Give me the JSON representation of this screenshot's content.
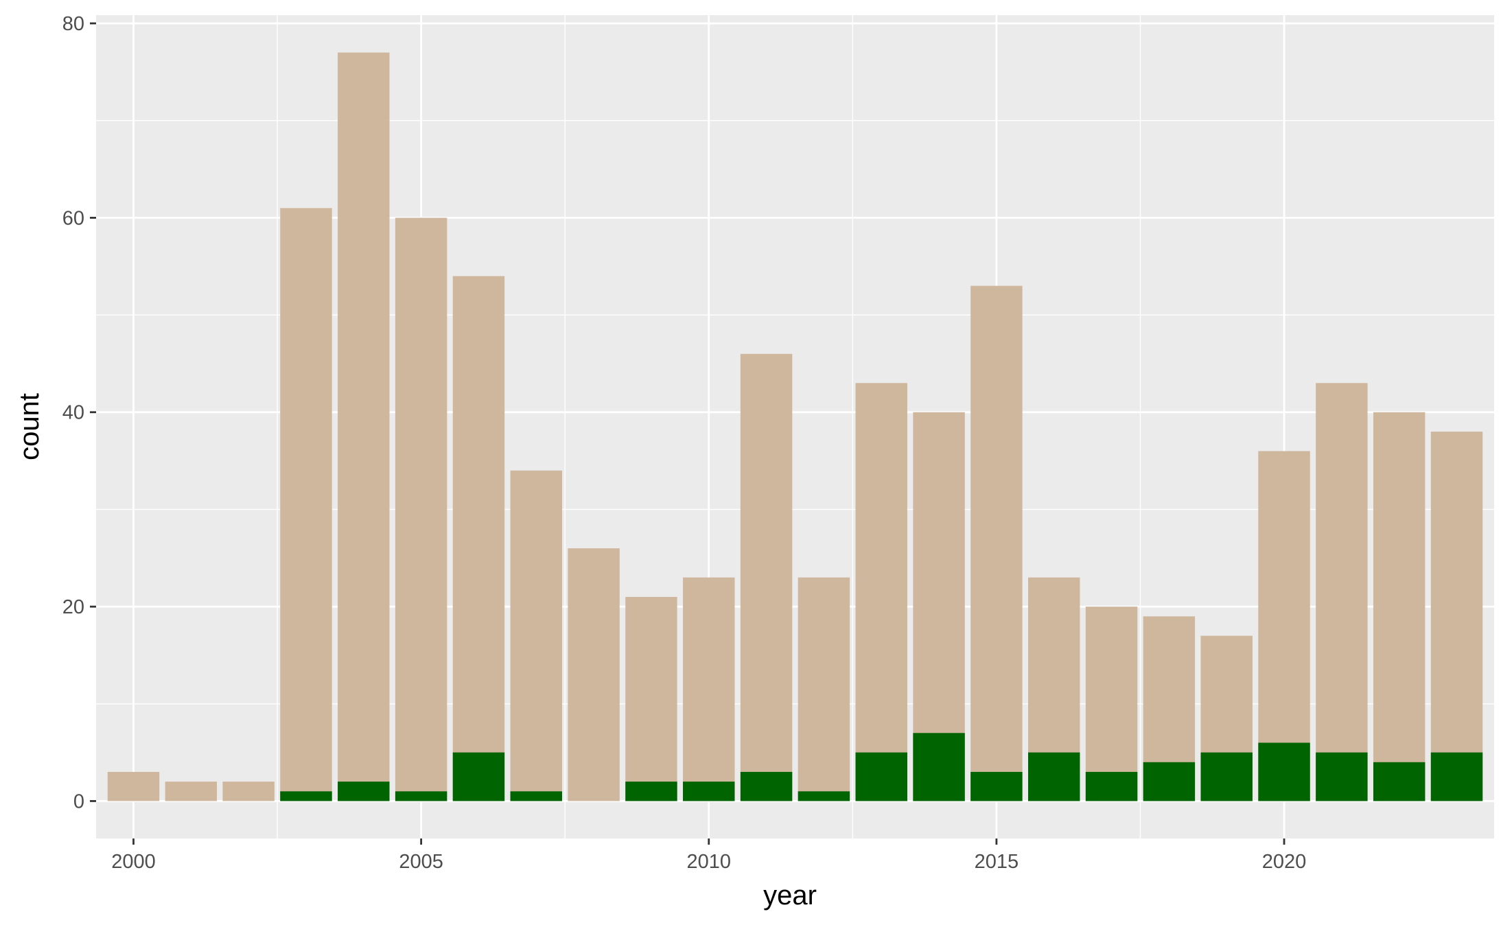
{
  "chart_data": {
    "type": "bar",
    "stacked": false,
    "xlabel": "year",
    "ylabel": "count",
    "x": [
      2000,
      2001,
      2002,
      2003,
      2004,
      2005,
      2006,
      2007,
      2008,
      2009,
      2010,
      2011,
      2012,
      2013,
      2014,
      2015,
      2016,
      2017,
      2018,
      2019,
      2020,
      2021,
      2022,
      2023
    ],
    "series": [
      {
        "color": "#cfb79e",
        "values": [
          3,
          2,
          2,
          61,
          77,
          60,
          54,
          34,
          26,
          21,
          23,
          46,
          23,
          43,
          40,
          53,
          23,
          20,
          19,
          17,
          36,
          43,
          40,
          38
        ]
      },
      {
        "color": "#006400",
        "values": [
          0,
          0,
          0,
          1,
          2,
          1,
          5,
          1,
          0,
          2,
          2,
          3,
          1,
          5,
          7,
          3,
          5,
          3,
          4,
          5,
          6,
          5,
          4,
          5
        ]
      }
    ],
    "x_ticks": [
      "2000",
      "2005",
      "2010",
      "2015",
      "2020"
    ],
    "y_ticks": [
      "0",
      "20",
      "40",
      "60",
      "80"
    ],
    "xlim": [
      1999.35,
      2023.65
    ],
    "ylim": [
      -3.85,
      80.85
    ],
    "grid": true,
    "panel_background": "#ebebeb",
    "grid_color": "#ffffff",
    "legend": "none"
  }
}
